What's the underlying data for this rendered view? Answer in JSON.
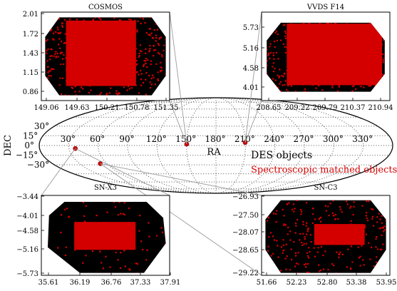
{
  "figure": {
    "background": "#ffffff",
    "dot_color": "#000000",
    "matched_color": "#d40000",
    "frame_color": "#000000",
    "grid_color": "#555555",
    "line_color": "#9a9a9a"
  },
  "chart_data": [
    {
      "id": "sky",
      "type": "scatter",
      "projection": "mollweide",
      "xlabel": "RA",
      "ylabel": "DEC",
      "ra_ticks": [
        "30°",
        "60°",
        "90°",
        "120°",
        "150°",
        "180°",
        "210°",
        "240°",
        "270°",
        "300°",
        "330°"
      ],
      "dec_ticks": [
        "30°",
        "15°",
        "0°",
        "−15°",
        "−30°"
      ],
      "legend": {
        "position": "lower-right",
        "entries": [
          {
            "label": "DES objects",
            "color": "#000000"
          },
          {
            "label": "Spectroscopic matched objects",
            "color": "#d40000"
          }
        ]
      },
      "fields": [
        {
          "id": "cosmos",
          "ra": 150.2,
          "dec": 2.2
        },
        {
          "id": "vvds",
          "ra": 209.8,
          "dec": 4.6
        },
        {
          "id": "snx3",
          "ra": 36.5,
          "dec": -4.6
        },
        {
          "id": "snc3",
          "ra": 52.7,
          "dec": -28.1
        }
      ]
    },
    {
      "id": "cosmos",
      "type": "scatter",
      "title": "COSMOS",
      "x_ticks": [
        "149.06",
        "149.63",
        "150.21",
        "150.78",
        "151.35"
      ],
      "y_ticks": [
        "2.01",
        "1.72",
        "1.43",
        "1.15",
        "0.86"
      ],
      "xlim": [
        149.06,
        151.35
      ],
      "ylim": [
        0.86,
        2.01
      ],
      "density": 0.45,
      "dense_region": {
        "x": [
          149.5,
          150.75
        ],
        "y": [
          1.05,
          1.9
        ]
      }
    },
    {
      "id": "vvds",
      "type": "scatter",
      "title": "VVDS F14",
      "x_ticks": [
        "208.65",
        "209.22",
        "209.79",
        "210.37",
        "210.94"
      ],
      "y_ticks": [
        "5.73",
        "5.16",
        "4.58",
        "4.01"
      ],
      "xlim": [
        208.65,
        210.94
      ],
      "ylim": [
        3.6,
        5.9
      ],
      "density": 0.5,
      "dense_region": {
        "x": [
          209.1,
          210.8
        ],
        "y": [
          4.0,
          5.6
        ]
      }
    },
    {
      "id": "snx3",
      "type": "scatter",
      "title": "SN-X3",
      "x_ticks": [
        "35.61",
        "36.19",
        "36.76",
        "37.33",
        "37.91"
      ],
      "y_ticks": [
        "−3.44",
        "−4.01",
        "−4.58",
        "−5.16",
        "−5.73"
      ],
      "xlim": [
        35.61,
        37.91
      ],
      "ylim": [
        -5.73,
        -3.44
      ],
      "density": 0.07,
      "dense_region": {
        "x": [
          36.2,
          37.3
        ],
        "y": [
          -5.0,
          -4.2
        ]
      }
    },
    {
      "id": "snc3",
      "type": "scatter",
      "title": "SN-C3",
      "x_ticks": [
        "51.66",
        "52.23",
        "52.80",
        "53.38",
        "53.95"
      ],
      "y_ticks": [
        "−26.93",
        "−27.50",
        "−28.07",
        "−28.65",
        "−29.22"
      ],
      "xlim": [
        51.66,
        53.95
      ],
      "ylim": [
        -29.22,
        -26.93
      ],
      "density": 0.25,
      "dense_region": {
        "x": [
          52.6,
          53.5
        ],
        "y": [
          -28.35,
          -27.75
        ]
      }
    }
  ]
}
